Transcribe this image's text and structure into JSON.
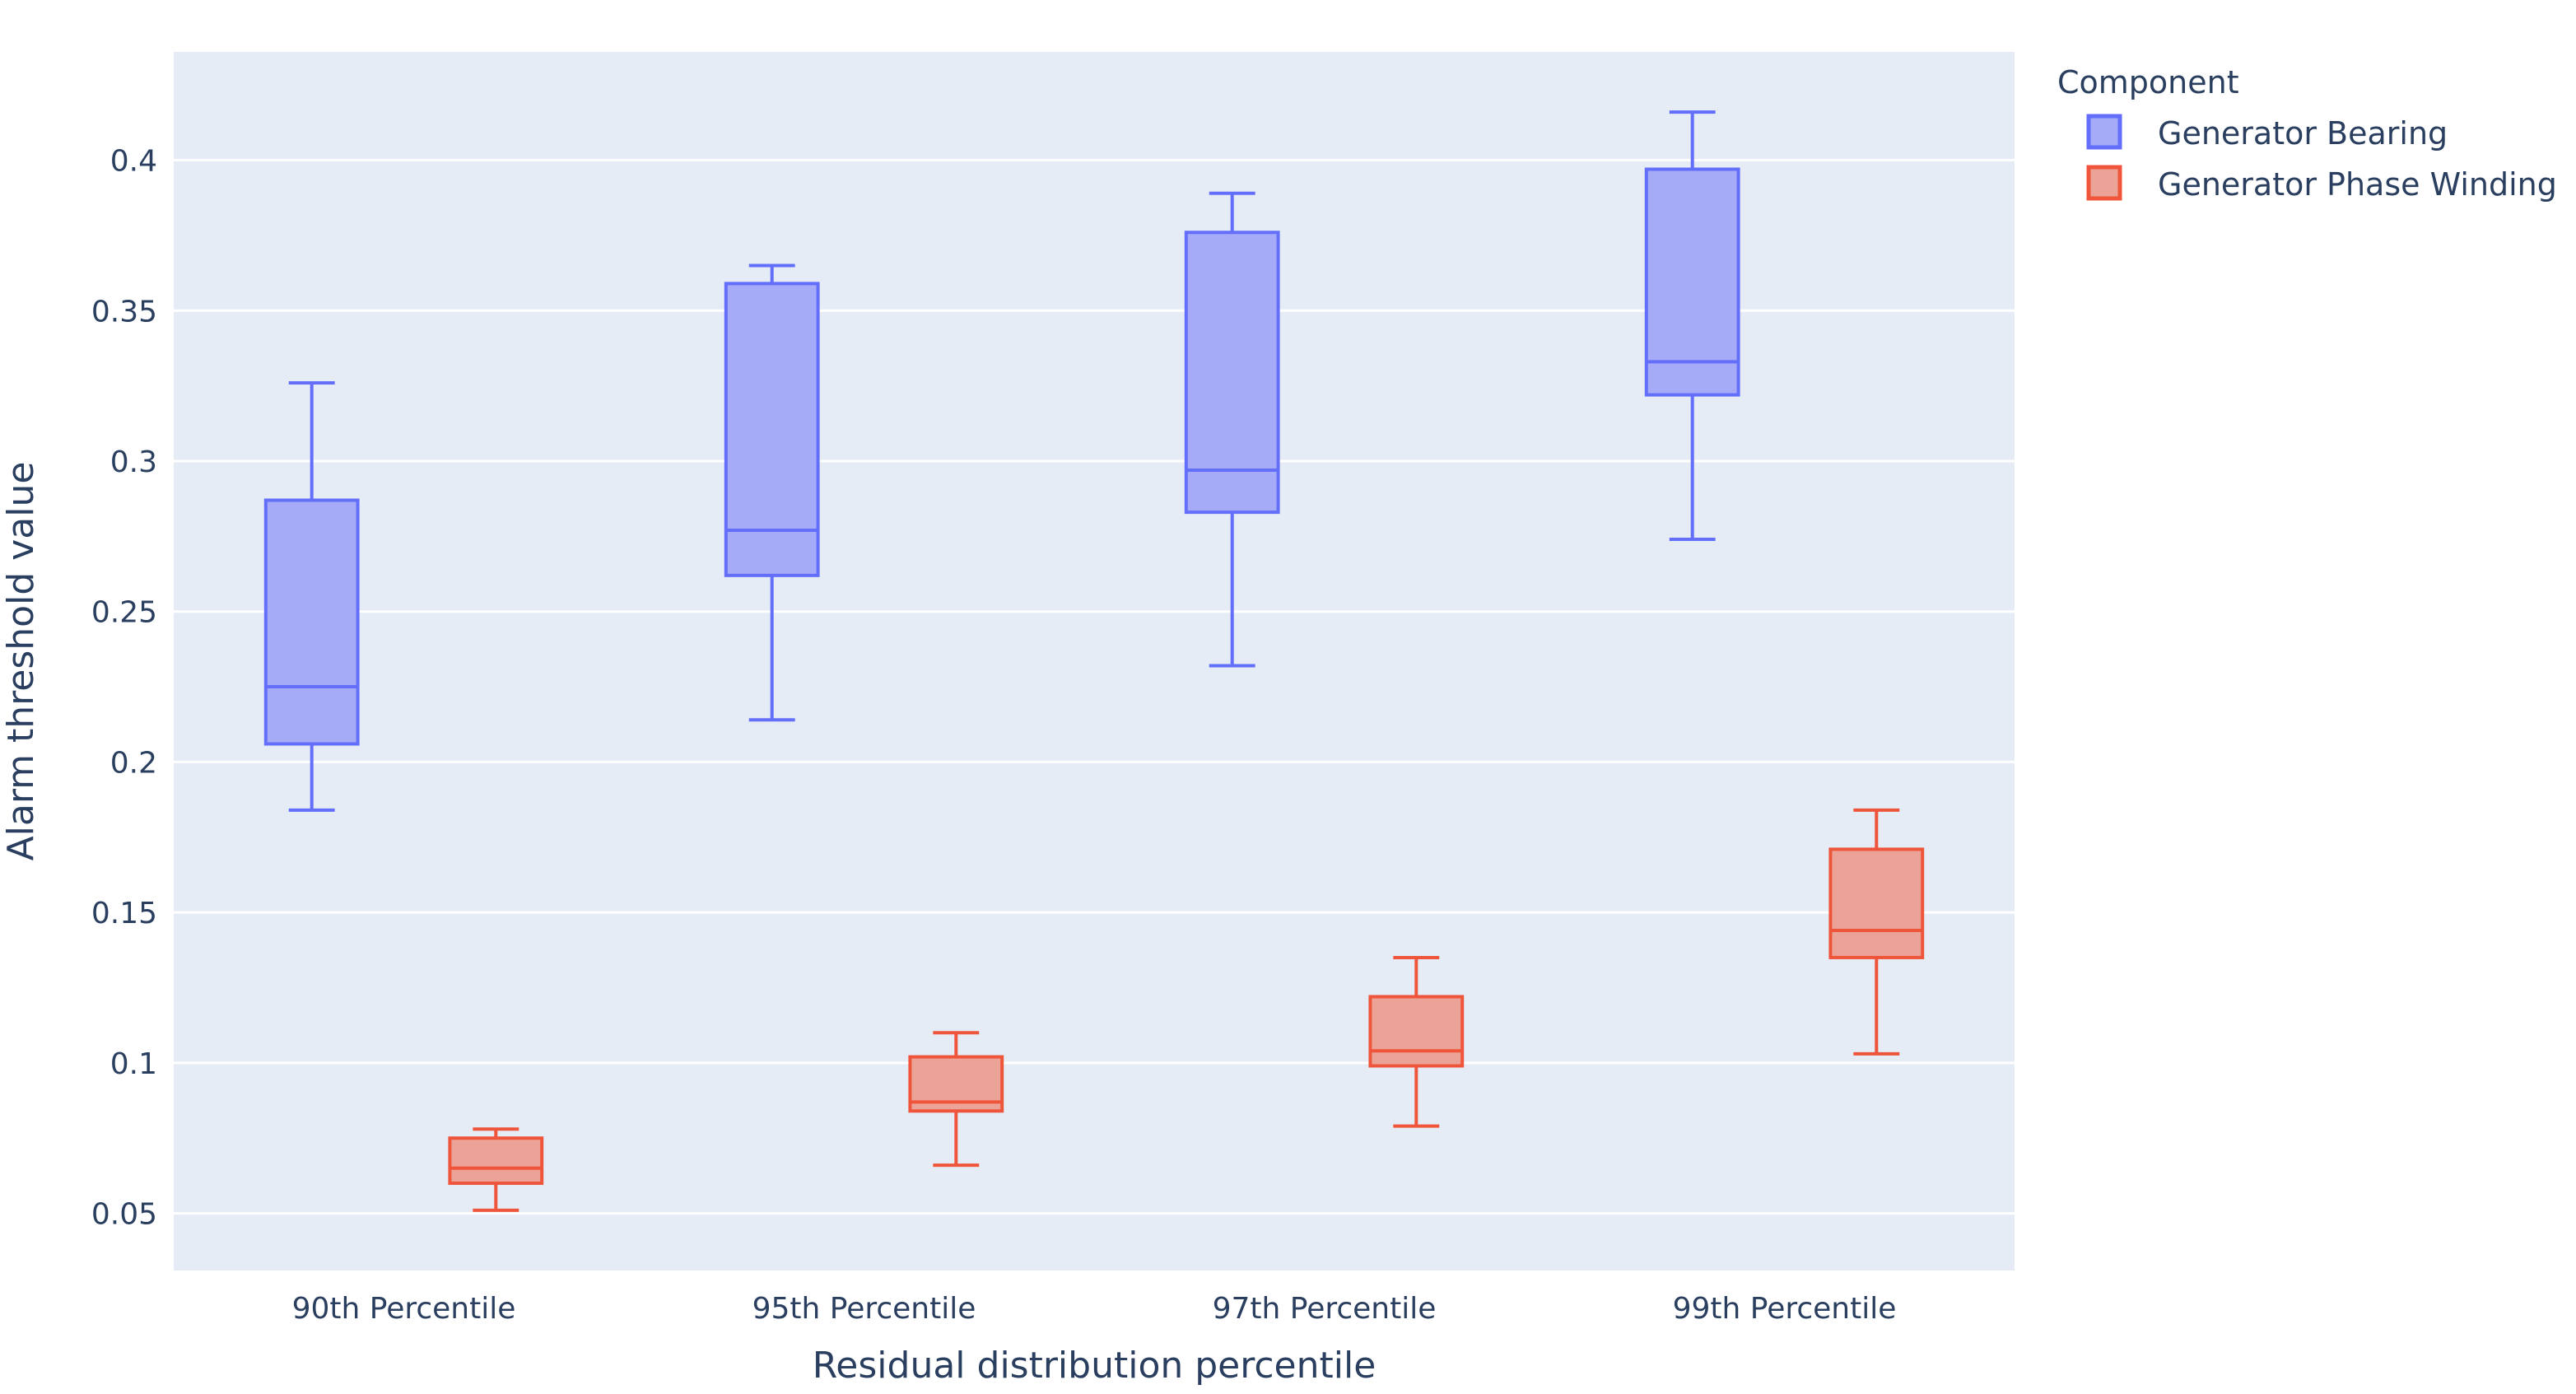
{
  "chart_data": {
    "type": "box",
    "title": "",
    "xlabel": "Residual distribution percentile",
    "ylabel": "Alarm threshold value",
    "ylim": [
      0.031,
      0.436
    ],
    "y_ticks": [
      0.05,
      0.1,
      0.15,
      0.2,
      0.25,
      0.3,
      0.35,
      0.4
    ],
    "y_tick_labels": [
      "0.05",
      "0.1",
      "0.15",
      "0.2",
      "0.25",
      "0.3",
      "0.35",
      "0.4"
    ],
    "categories": [
      "90th Percentile",
      "95th Percentile",
      "97th Percentile",
      "99th Percentile"
    ],
    "legend": {
      "title": "Component",
      "position": "top-right"
    },
    "series": [
      {
        "name": "Generator Bearing",
        "line_color": "#636efa",
        "fill_color": "#a5abf7",
        "boxes": [
          {
            "min": 0.184,
            "q1": 0.206,
            "median": 0.225,
            "q3": 0.287,
            "max": 0.326
          },
          {
            "min": 0.214,
            "q1": 0.262,
            "median": 0.277,
            "q3": 0.359,
            "max": 0.365
          },
          {
            "min": 0.232,
            "q1": 0.283,
            "median": 0.297,
            "q3": 0.376,
            "max": 0.389
          },
          {
            "min": 0.274,
            "q1": 0.322,
            "median": 0.333,
            "q3": 0.397,
            "max": 0.416
          }
        ]
      },
      {
        "name": "Generator Phase Winding",
        "line_color": "#ef553b",
        "fill_color": "#eca397",
        "boxes": [
          {
            "min": 0.051,
            "q1": 0.06,
            "median": 0.065,
            "q3": 0.075,
            "max": 0.078
          },
          {
            "min": 0.066,
            "q1": 0.084,
            "median": 0.087,
            "q3": 0.102,
            "max": 0.11
          },
          {
            "min": 0.079,
            "q1": 0.099,
            "median": 0.104,
            "q3": 0.122,
            "max": 0.135
          },
          {
            "min": 0.103,
            "q1": 0.135,
            "median": 0.144,
            "q3": 0.171,
            "max": 0.184
          }
        ]
      }
    ]
  }
}
